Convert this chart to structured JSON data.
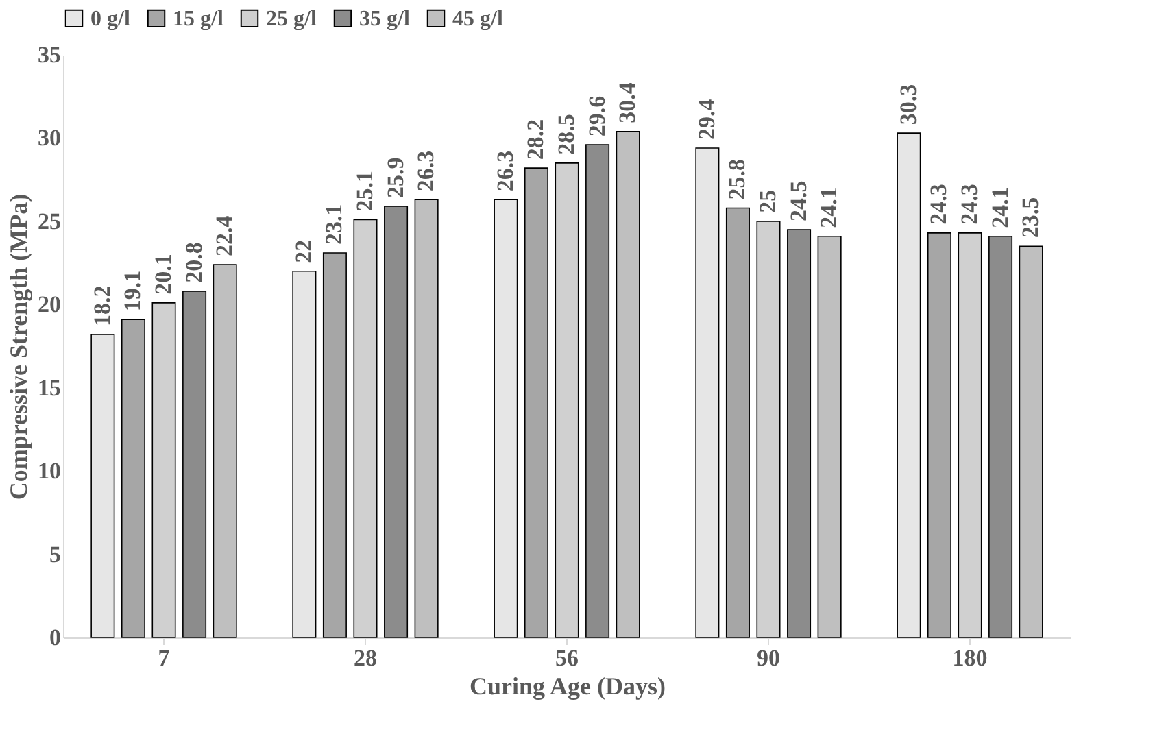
{
  "chart_data": {
    "type": "bar",
    "xlabel": "Curing Age (Days)",
    "ylabel": "Compressive Strength (MPa)",
    "categories": [
      "7",
      "28",
      "56",
      "90",
      "180"
    ],
    "series": [
      {
        "name": "0 g/l",
        "color": "#e6e6e6",
        "values": [
          18.2,
          22,
          26.3,
          29.4,
          30.3
        ]
      },
      {
        "name": "15 g/l",
        "color": "#a6a6a6",
        "values": [
          19.1,
          23.1,
          28.2,
          25.8,
          24.3
        ]
      },
      {
        "name": "25 g/l",
        "color": "#d0d0d0",
        "values": [
          20.1,
          25.1,
          28.5,
          25,
          24.3
        ]
      },
      {
        "name": "35 g/l",
        "color": "#8c8c8c",
        "values": [
          20.8,
          25.9,
          29.6,
          24.5,
          24.1
        ]
      },
      {
        "name": "45 g/l",
        "color": "#bfbfbf",
        "values": [
          22.4,
          26.3,
          30.4,
          24.1,
          23.5
        ]
      }
    ],
    "ylim": [
      0,
      35
    ],
    "yticks": [
      0,
      5,
      10,
      15,
      20,
      25,
      30,
      35
    ],
    "grid": false,
    "legend": "top",
    "data_labels": true
  }
}
